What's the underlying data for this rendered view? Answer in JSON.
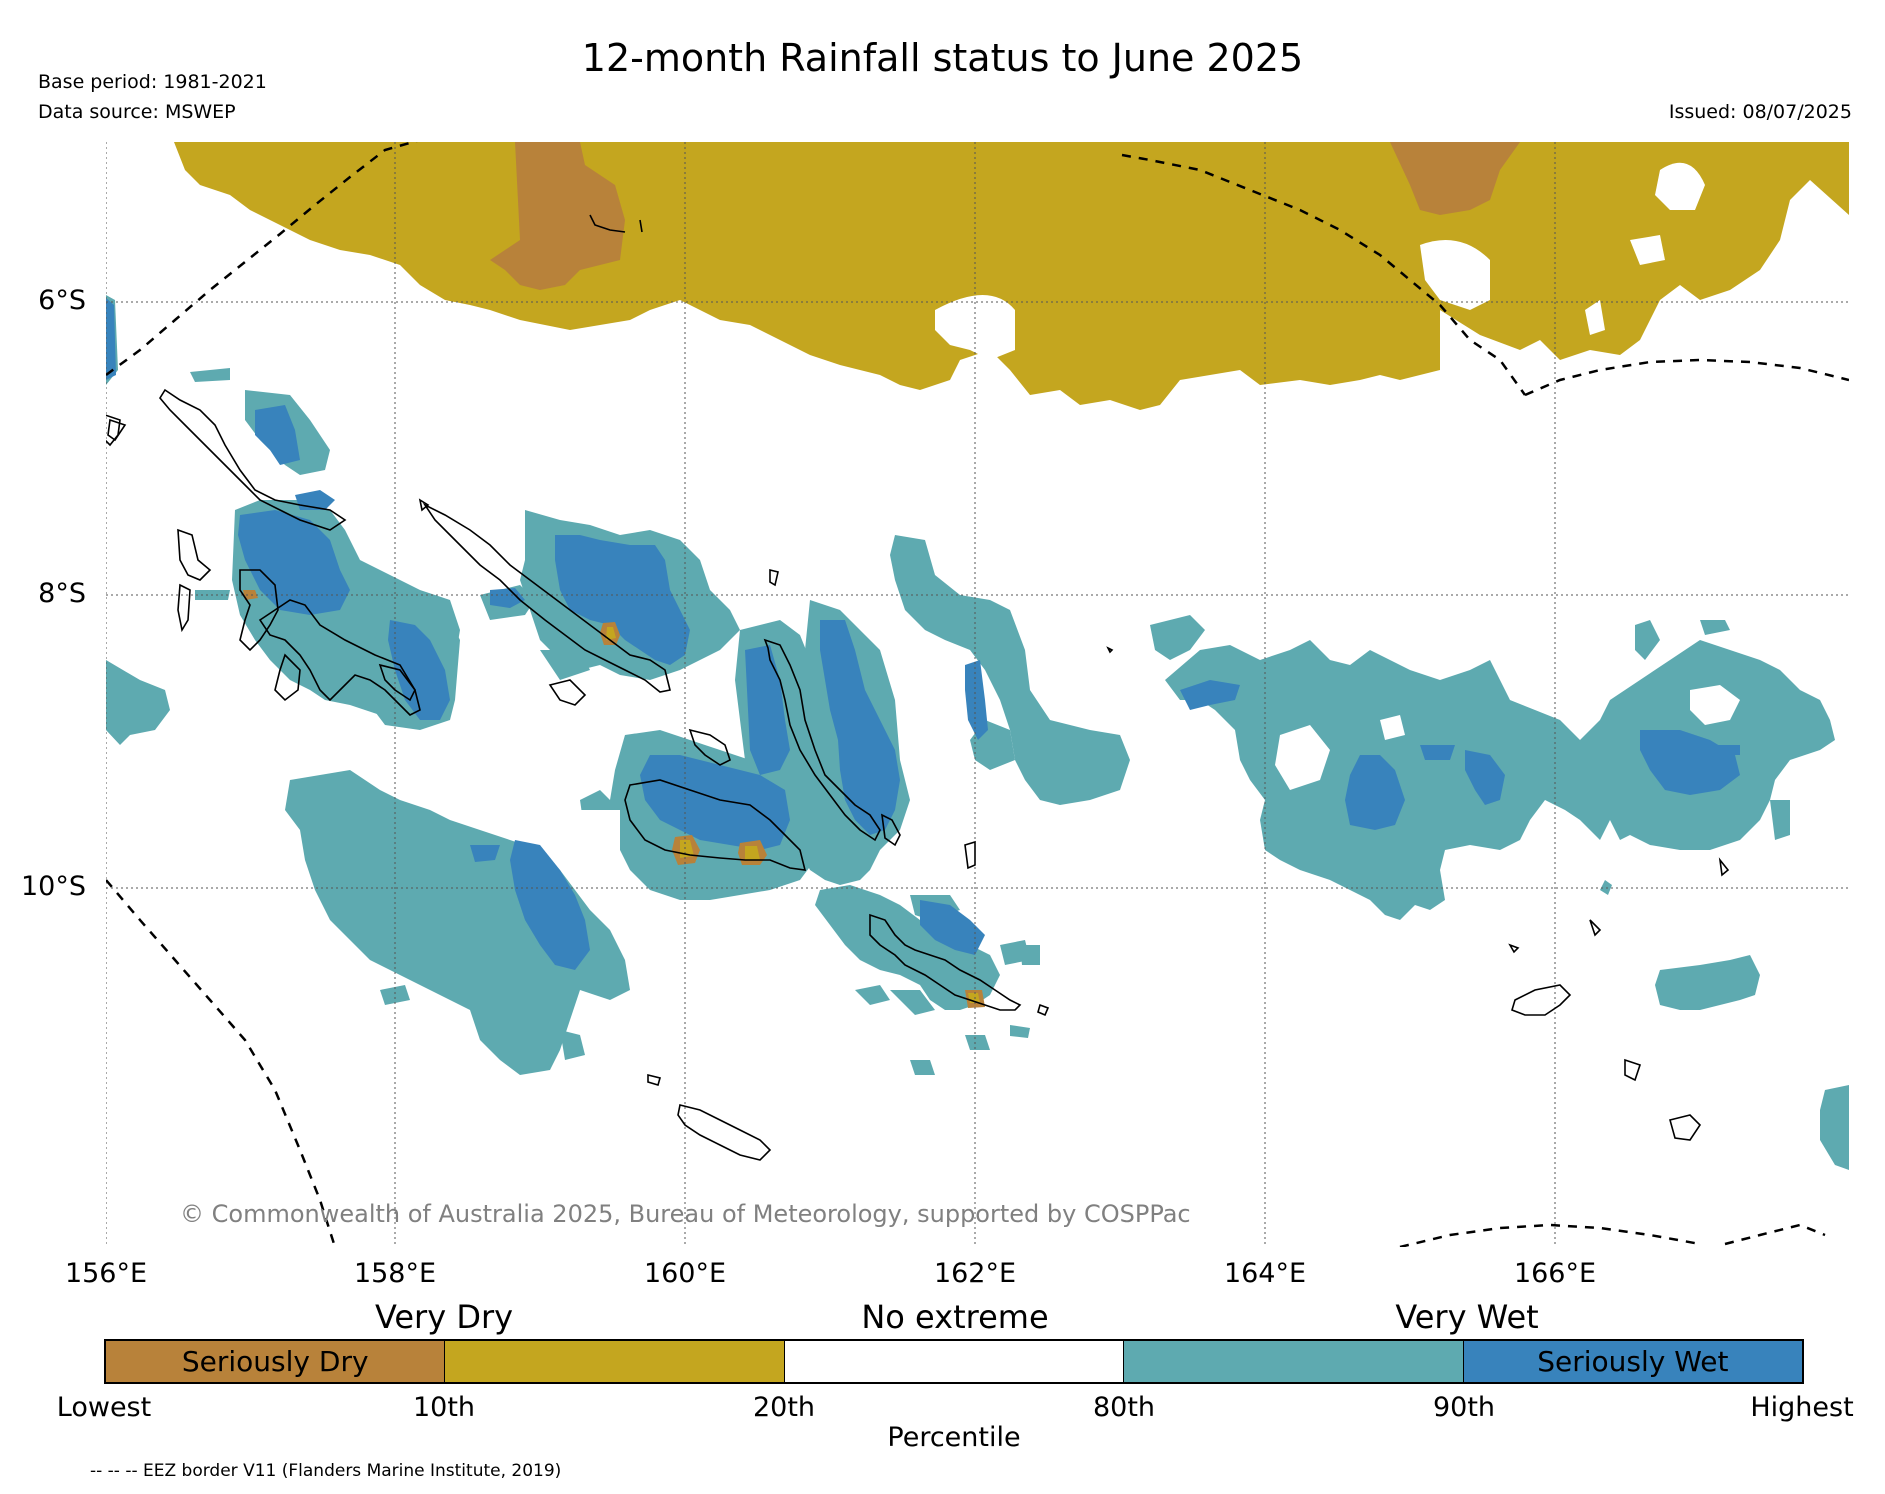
{
  "title": "12-month Rainfall status to June 2025",
  "base_period": "Base period: 1981-2021",
  "data_source": "Data source: MSWEP",
  "issued": "Issued: 08/07/2025",
  "copyright": "© Commonwealth of Australia 2025, Bureau of Meteorology, supported by COSPPac",
  "eez_note": "-- -- -- EEZ border V11 (Flanders Marine Institute, 2019)",
  "colors": {
    "seriously_dry": "#b8823a",
    "very_dry": "#c4a61f",
    "no_extreme": "#ffffff",
    "very_wet": "#5eaab0",
    "seriously_wet": "#3883bc",
    "coastline": "#000000",
    "gridline": "#555555"
  },
  "map": {
    "lon_labels": [
      "156°E",
      "158°E",
      "160°E",
      "162°E",
      "164°E",
      "166°E"
    ],
    "lat_labels": [
      "6°S",
      "8°S",
      "10°S"
    ],
    "lon_range": [
      156,
      168
    ],
    "lat_range": [
      -4.9,
      -12.4
    ],
    "eez_borders": true
  },
  "legend": {
    "categories": [
      "Very Dry",
      "No extreme",
      "Very Wet"
    ],
    "segments": [
      {
        "label": "Seriously Dry",
        "color": "#b8823a"
      },
      {
        "label": "",
        "color": "#c4a61f"
      },
      {
        "label": "",
        "color": "#ffffff"
      },
      {
        "label": "",
        "color": "#5eaab0"
      },
      {
        "label": "Seriously Wet",
        "color": "#3883bc"
      }
    ],
    "ticks": [
      "Lowest",
      "10th",
      "20th",
      "80th",
      "90th",
      "Highest"
    ],
    "axis_label": "Percentile"
  }
}
